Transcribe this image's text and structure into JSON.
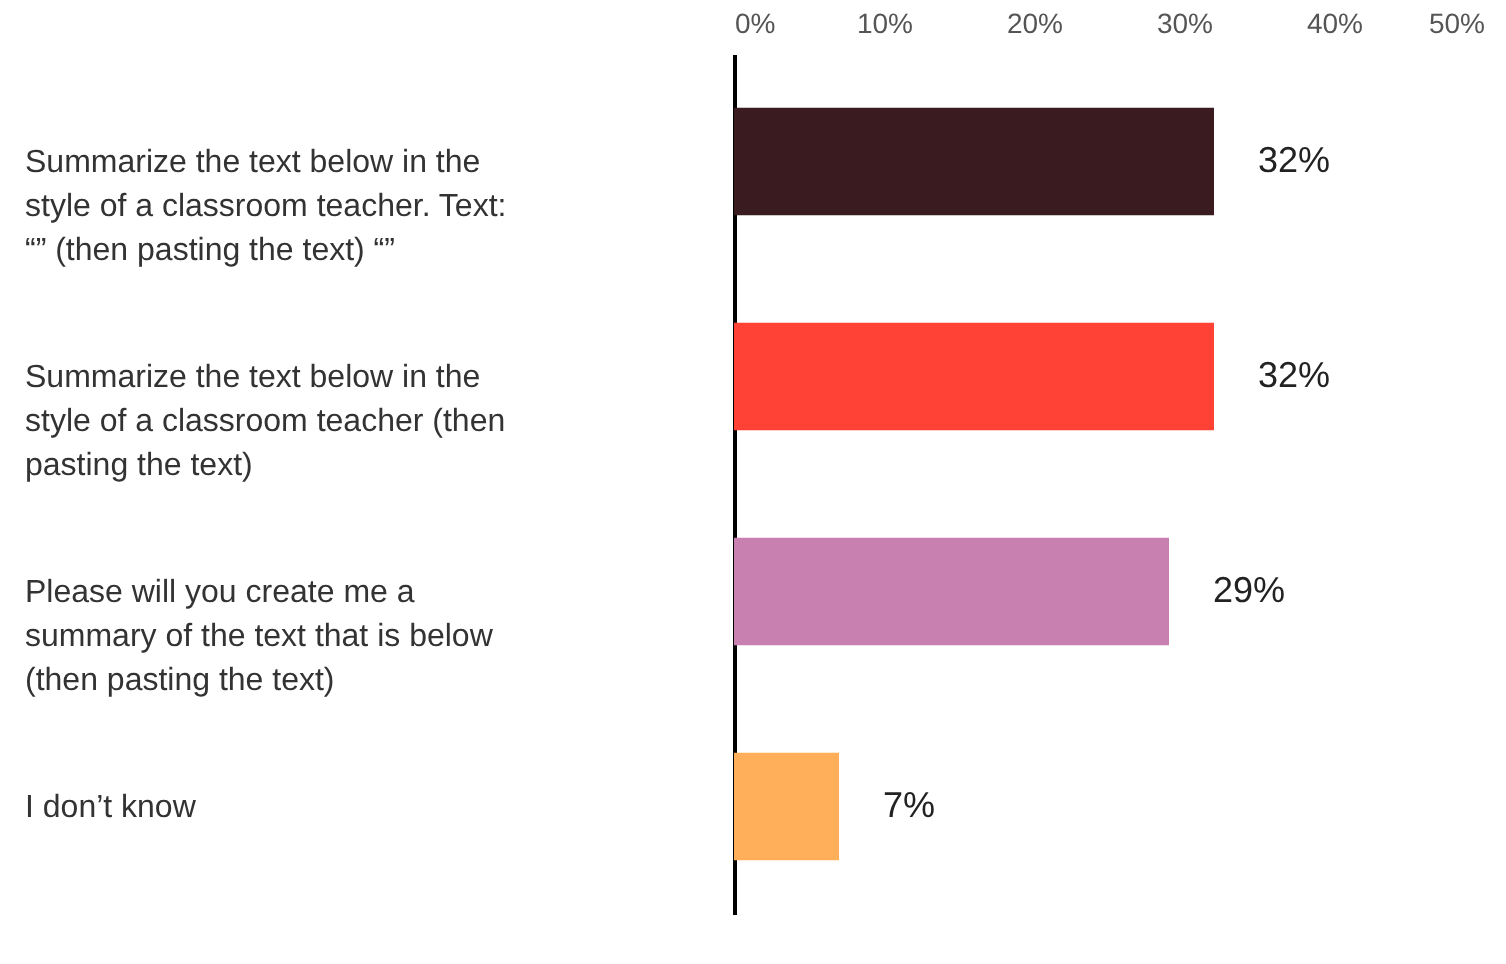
{
  "chart_data": {
    "type": "bar",
    "orientation": "horizontal",
    "categories": [
      "Summarize the text below in the style of a classroom teacher. Text: “” (then pasting the text) “”",
      "Summarize the text below in the style of a classroom teacher (then pasting the text)",
      "Please will you create me a summary of the text that is below (then pasting the text)",
      "I don’t know"
    ],
    "values": [
      32,
      32,
      29,
      7
    ],
    "colors": [
      "#3a1c20",
      "#ff4136",
      "#c880b0",
      "#ffae5a"
    ],
    "value_labels": [
      "32%",
      "32%",
      "29%",
      "7%"
    ],
    "xlim": [
      0,
      50
    ],
    "xticks": [
      {
        "value": 0,
        "label": "0%"
      },
      {
        "value": 10,
        "label": "10%"
      },
      {
        "value": 20,
        "label": "20%"
      },
      {
        "value": 30,
        "label": "30%"
      },
      {
        "value": 40,
        "label": "40%"
      },
      {
        "value": 50,
        "label": "50%"
      }
    ],
    "grid": false
  }
}
